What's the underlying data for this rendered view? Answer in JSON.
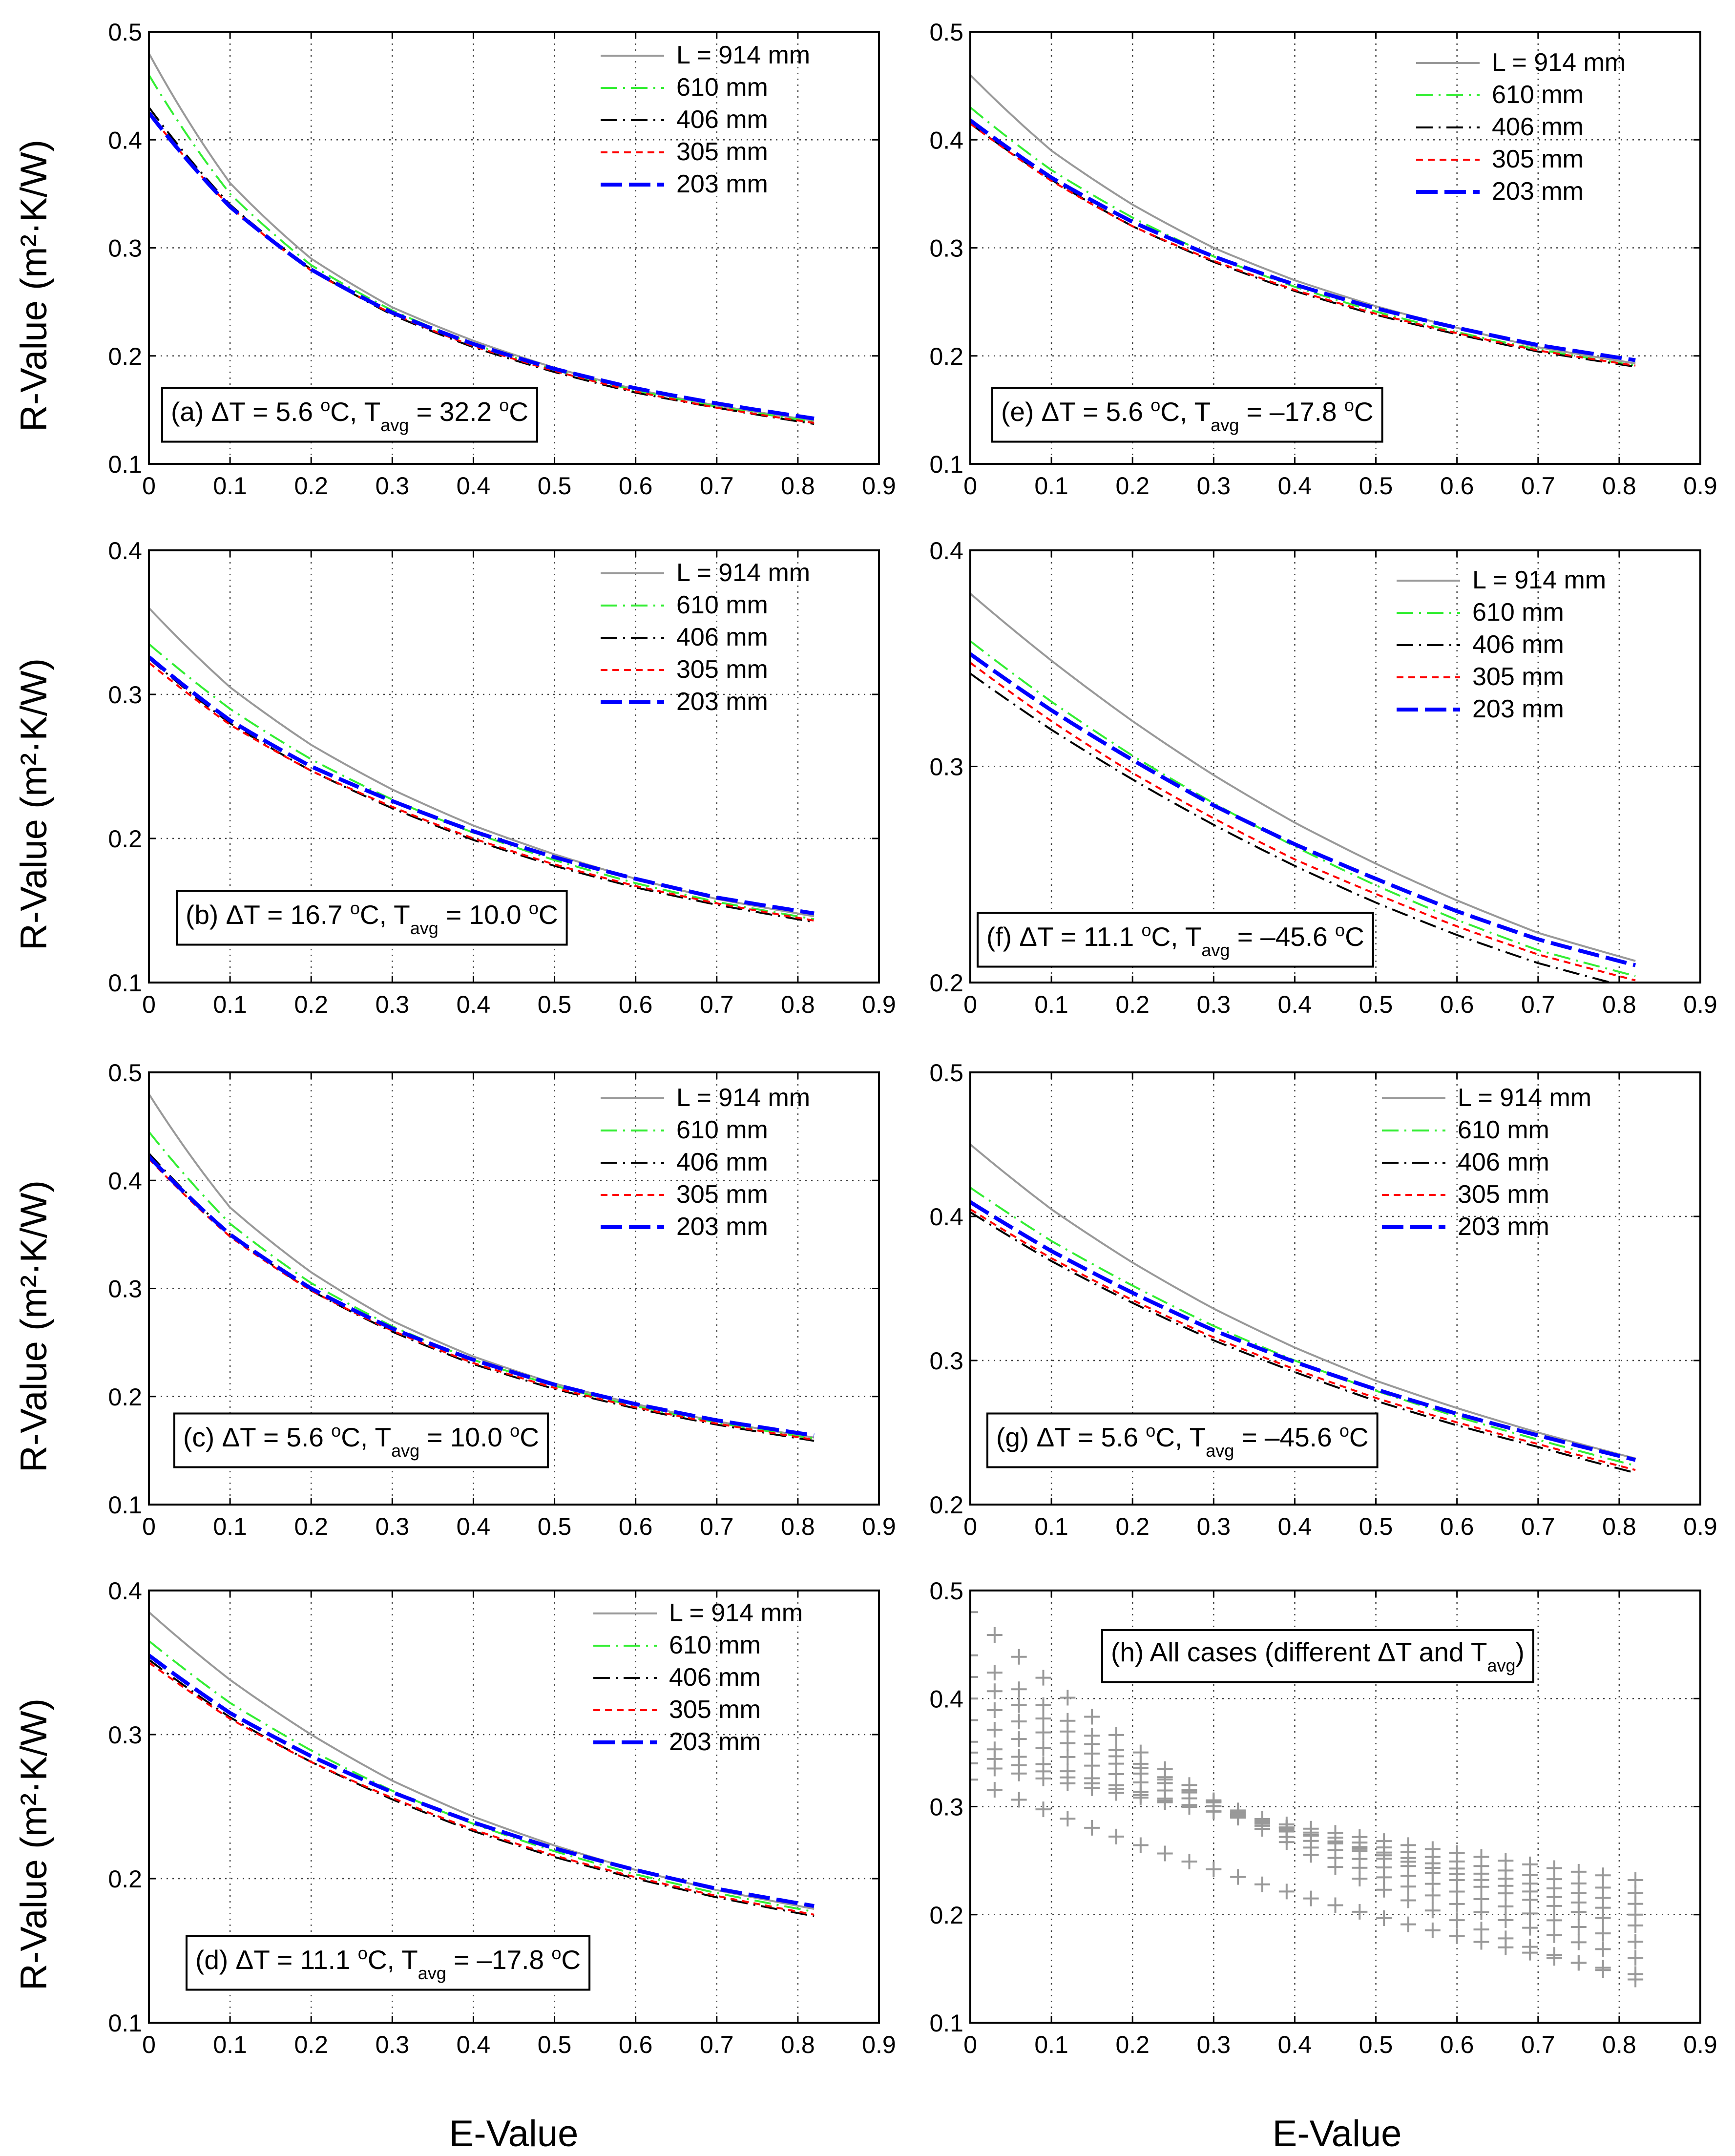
{
  "figure": {
    "xlabel": "E-Value",
    "ylabel": "R-Value (m²·K/W)",
    "legend_labels": [
      "L = 914 mm",
      "610 mm",
      "406 mm",
      "305 mm",
      "203 mm"
    ],
    "series_styles": [
      {
        "name": "L = 914 mm",
        "color": "#999999",
        "dash": "solid",
        "width": 4
      },
      {
        "name": "610 mm",
        "color": "#33ee33",
        "dash": "dashdot",
        "width": 4
      },
      {
        "name": "406 mm",
        "color": "#000000",
        "dash": "dashdot",
        "width": 4
      },
      {
        "name": "305 mm",
        "color": "#ff0000",
        "dash": "short",
        "width": 4
      },
      {
        "name": "203 mm",
        "color": "#0000ff",
        "dash": "long",
        "width": 8
      }
    ]
  },
  "chart_data": [
    {
      "panel": "a",
      "type": "line",
      "annotation": {
        "pre": "(a) ΔT = 5.6 ",
        "v1": "32.2",
        "parts": [
          "(a) ΔT = 5.6 ",
          "o",
          "C, T",
          "avg",
          " = 32.2 ",
          "o",
          "C"
        ]
      },
      "xlim": [
        0,
        0.9
      ],
      "ylim": [
        0.1,
        0.5
      ],
      "xticks": [
        "0",
        "0.1",
        "0.2",
        "0.3",
        "0.4",
        "0.5",
        "0.6",
        "0.7",
        "0.8",
        "0.9"
      ],
      "yticks": [
        "0.1",
        "0.2",
        "0.3",
        "0.4",
        "0.5"
      ],
      "legend": "top-right",
      "x": [
        0.0,
        0.1,
        0.2,
        0.3,
        0.4,
        0.5,
        0.6,
        0.7,
        0.82
      ],
      "series": [
        {
          "name": "L = 914 mm",
          "values": [
            0.48,
            0.36,
            0.29,
            0.245,
            0.214,
            0.189,
            0.169,
            0.154,
            0.14
          ]
        },
        {
          "name": "610 mm",
          "values": [
            0.46,
            0.35,
            0.284,
            0.242,
            0.211,
            0.187,
            0.168,
            0.153,
            0.139
          ]
        },
        {
          "name": "406 mm",
          "values": [
            0.43,
            0.34,
            0.28,
            0.238,
            0.208,
            0.185,
            0.166,
            0.152,
            0.137
          ]
        },
        {
          "name": "305 mm",
          "values": [
            0.425,
            0.338,
            0.279,
            0.239,
            0.209,
            0.186,
            0.167,
            0.152,
            0.138
          ]
        },
        {
          "name": "203 mm",
          "values": [
            0.425,
            0.338,
            0.28,
            0.24,
            0.211,
            0.188,
            0.17,
            0.156,
            0.142
          ]
        }
      ]
    },
    {
      "panel": "b",
      "type": "line",
      "annotation": {
        "parts": [
          "(b) ΔT = 16.7 ",
          "o",
          "C, T",
          "avg",
          " = 10.0 ",
          "o",
          "C"
        ]
      },
      "xlim": [
        0,
        0.9
      ],
      "ylim": [
        0.1,
        0.4
      ],
      "xticks": [
        "0",
        "0.1",
        "0.2",
        "0.3",
        "0.4",
        "0.5",
        "0.6",
        "0.7",
        "0.8",
        "0.9"
      ],
      "yticks": [
        "0.1",
        "0.2",
        "0.3",
        "0.4"
      ],
      "legend": "top-right",
      "x": [
        0.0,
        0.1,
        0.2,
        0.3,
        0.4,
        0.5,
        0.6,
        0.7,
        0.82
      ],
      "series": [
        {
          "name": "L = 914 mm",
          "values": [
            0.36,
            0.305,
            0.265,
            0.234,
            0.209,
            0.189,
            0.172,
            0.158,
            0.146
          ]
        },
        {
          "name": "610 mm",
          "values": [
            0.335,
            0.29,
            0.255,
            0.227,
            0.204,
            0.185,
            0.169,
            0.156,
            0.144
          ]
        },
        {
          "name": "406 mm",
          "values": [
            0.325,
            0.28,
            0.247,
            0.221,
            0.199,
            0.181,
            0.166,
            0.154,
            0.142
          ]
        },
        {
          "name": "305 mm",
          "values": [
            0.322,
            0.279,
            0.247,
            0.222,
            0.2,
            0.182,
            0.167,
            0.155,
            0.143
          ]
        },
        {
          "name": "203 mm",
          "values": [
            0.326,
            0.282,
            0.25,
            0.226,
            0.205,
            0.187,
            0.172,
            0.159,
            0.148
          ]
        }
      ]
    },
    {
      "panel": "c",
      "type": "line",
      "annotation": {
        "parts": [
          "(c) ΔT = 5.6 ",
          "o",
          "C, T",
          "avg",
          " = 10.0 ",
          "o",
          "C"
        ]
      },
      "xlim": [
        0,
        0.9
      ],
      "ylim": [
        0.1,
        0.5
      ],
      "xticks": [
        "0",
        "0.1",
        "0.2",
        "0.3",
        "0.4",
        "0.5",
        "0.6",
        "0.7",
        "0.8",
        "0.9"
      ],
      "yticks": [
        "0.1",
        "0.2",
        "0.3",
        "0.4",
        "0.5"
      ],
      "legend": "top-right",
      "x": [
        0.0,
        0.1,
        0.2,
        0.3,
        0.4,
        0.5,
        0.6,
        0.7,
        0.82
      ],
      "series": [
        {
          "name": "L = 914 mm",
          "values": [
            0.48,
            0.375,
            0.315,
            0.27,
            0.237,
            0.212,
            0.193,
            0.177,
            0.162
          ]
        },
        {
          "name": "610 mm",
          "values": [
            0.445,
            0.36,
            0.305,
            0.265,
            0.234,
            0.21,
            0.191,
            0.176,
            0.161
          ]
        },
        {
          "name": "406 mm",
          "values": [
            0.425,
            0.35,
            0.298,
            0.26,
            0.23,
            0.207,
            0.189,
            0.174,
            0.159
          ]
        },
        {
          "name": "305 mm",
          "values": [
            0.42,
            0.348,
            0.298,
            0.261,
            0.231,
            0.208,
            0.19,
            0.175,
            0.16
          ]
        },
        {
          "name": "203 mm",
          "values": [
            0.422,
            0.35,
            0.3,
            0.263,
            0.234,
            0.211,
            0.193,
            0.178,
            0.164
          ]
        }
      ]
    },
    {
      "panel": "d",
      "type": "line",
      "annotation": {
        "parts": [
          "(d) ΔT = 11.1 ",
          "o",
          "C, T",
          "avg",
          " = –17.8 ",
          "o",
          "C"
        ]
      },
      "xlim": [
        0,
        0.9
      ],
      "ylim": [
        0.1,
        0.4
      ],
      "xticks": [
        "0",
        "0.1",
        "0.2",
        "0.3",
        "0.4",
        "0.5",
        "0.6",
        "0.7",
        "0.8",
        "0.9"
      ],
      "yticks": [
        "0.1",
        "0.2",
        "0.3",
        "0.4"
      ],
      "legend": "top-right",
      "x": [
        0.0,
        0.1,
        0.2,
        0.3,
        0.4,
        0.5,
        0.6,
        0.7,
        0.82
      ],
      "series": [
        {
          "name": "L = 914 mm",
          "values": [
            0.385,
            0.338,
            0.3,
            0.268,
            0.243,
            0.223,
            0.206,
            0.192,
            0.179
          ]
        },
        {
          "name": "610 mm",
          "values": [
            0.365,
            0.322,
            0.289,
            0.261,
            0.238,
            0.219,
            0.203,
            0.19,
            0.177
          ]
        },
        {
          "name": "406 mm",
          "values": [
            0.352,
            0.312,
            0.281,
            0.255,
            0.233,
            0.215,
            0.2,
            0.187,
            0.174
          ]
        },
        {
          "name": "305 mm",
          "values": [
            0.35,
            0.311,
            0.281,
            0.256,
            0.234,
            0.216,
            0.201,
            0.188,
            0.175
          ]
        },
        {
          "name": "203 mm",
          "values": [
            0.355,
            0.315,
            0.285,
            0.26,
            0.239,
            0.221,
            0.206,
            0.193,
            0.181
          ]
        }
      ]
    },
    {
      "panel": "e",
      "type": "line",
      "annotation": {
        "parts": [
          "(e) ΔT = 5.6 ",
          "o",
          "C, T",
          "avg",
          " = –17.8 ",
          "o",
          "C"
        ]
      },
      "xlim": [
        0,
        0.9
      ],
      "ylim": [
        0.1,
        0.5
      ],
      "xticks": [
        "0",
        "0.1",
        "0.2",
        "0.3",
        "0.4",
        "0.5",
        "0.6",
        "0.7",
        "0.8",
        "0.9"
      ],
      "yticks": [
        "0.1",
        "0.2",
        "0.3",
        "0.4",
        "0.5"
      ],
      "legend": "top-right",
      "x": [
        0.0,
        0.1,
        0.2,
        0.3,
        0.4,
        0.5,
        0.6,
        0.7,
        0.82
      ],
      "series": [
        {
          "name": "L = 914 mm",
          "values": [
            0.46,
            0.39,
            0.34,
            0.3,
            0.27,
            0.246,
            0.226,
            0.208,
            0.193
          ]
        },
        {
          "name": "610 mm",
          "values": [
            0.43,
            0.372,
            0.328,
            0.292,
            0.264,
            0.241,
            0.222,
            0.206,
            0.191
          ]
        },
        {
          "name": "406 mm",
          "values": [
            0.415,
            0.363,
            0.32,
            0.287,
            0.26,
            0.238,
            0.22,
            0.204,
            0.19
          ]
        },
        {
          "name": "305 mm",
          "values": [
            0.415,
            0.362,
            0.32,
            0.288,
            0.261,
            0.239,
            0.221,
            0.205,
            0.191
          ]
        },
        {
          "name": "203 mm",
          "values": [
            0.418,
            0.365,
            0.324,
            0.292,
            0.266,
            0.244,
            0.226,
            0.21,
            0.196
          ]
        }
      ]
    },
    {
      "panel": "f",
      "type": "line",
      "annotation": {
        "parts": [
          "(f) ΔT = 11.1 ",
          "o",
          "C, T",
          "avg",
          " = –45.6 ",
          "o",
          "C"
        ]
      },
      "xlim": [
        0,
        0.9
      ],
      "ylim": [
        0.2,
        0.4
      ],
      "xticks": [
        "0",
        "0.1",
        "0.2",
        "0.3",
        "0.4",
        "0.5",
        "0.6",
        "0.7",
        "0.8",
        "0.9"
      ],
      "yticks": [
        "0.2",
        "0.3",
        "0.4"
      ],
      "legend": "top-right",
      "x": [
        0.0,
        0.1,
        0.2,
        0.3,
        0.4,
        0.5,
        0.6,
        0.7,
        0.82
      ],
      "series": [
        {
          "name": "L = 914 mm",
          "values": [
            0.38,
            0.349,
            0.321,
            0.296,
            0.274,
            0.255,
            0.238,
            0.223,
            0.21
          ]
        },
        {
          "name": "610 mm",
          "values": [
            0.358,
            0.33,
            0.305,
            0.283,
            0.263,
            0.245,
            0.229,
            0.215,
            0.203
          ]
        },
        {
          "name": "406 mm",
          "values": [
            0.343,
            0.317,
            0.294,
            0.273,
            0.254,
            0.237,
            0.222,
            0.209,
            0.197
          ]
        },
        {
          "name": "305 mm",
          "values": [
            0.348,
            0.321,
            0.297,
            0.276,
            0.257,
            0.241,
            0.226,
            0.213,
            0.201
          ]
        },
        {
          "name": "203 mm",
          "values": [
            0.352,
            0.326,
            0.303,
            0.282,
            0.264,
            0.248,
            0.233,
            0.22,
            0.208
          ]
        }
      ]
    },
    {
      "panel": "g",
      "type": "line",
      "annotation": {
        "parts": [
          "(g) ΔT = 5.6 ",
          "o",
          "C, T",
          "avg",
          " = –45.6 ",
          "o",
          "C"
        ]
      },
      "xlim": [
        0,
        0.9
      ],
      "ylim": [
        0.2,
        0.5
      ],
      "xticks": [
        "0",
        "0.1",
        "0.2",
        "0.3",
        "0.4",
        "0.5",
        "0.6",
        "0.7",
        "0.8",
        "0.9"
      ],
      "yticks": [
        "0.2",
        "0.3",
        "0.4",
        "0.5"
      ],
      "legend": "top-right",
      "x": [
        0.0,
        0.1,
        0.2,
        0.3,
        0.4,
        0.5,
        0.6,
        0.7,
        0.82
      ],
      "series": [
        {
          "name": "L = 914 mm",
          "values": [
            0.45,
            0.405,
            0.368,
            0.336,
            0.309,
            0.286,
            0.267,
            0.25,
            0.232
          ]
        },
        {
          "name": "610 mm",
          "values": [
            0.42,
            0.383,
            0.352,
            0.324,
            0.3,
            0.279,
            0.261,
            0.245,
            0.227
          ]
        },
        {
          "name": "406 mm",
          "values": [
            0.403,
            0.369,
            0.34,
            0.314,
            0.292,
            0.272,
            0.255,
            0.24,
            0.222
          ]
        },
        {
          "name": "305 mm",
          "values": [
            0.405,
            0.371,
            0.342,
            0.316,
            0.294,
            0.274,
            0.257,
            0.242,
            0.224
          ]
        },
        {
          "name": "203 mm",
          "values": [
            0.41,
            0.376,
            0.347,
            0.321,
            0.299,
            0.28,
            0.263,
            0.248,
            0.231
          ]
        }
      ]
    },
    {
      "panel": "h",
      "type": "scatter",
      "annotation": {
        "parts": [
          "(h) All cases (different ΔT and T",
          "avg",
          ")"
        ]
      },
      "marker": "+",
      "marker_color": "#999999",
      "xlim": [
        0,
        0.9
      ],
      "ylim": [
        0.1,
        0.5
      ],
      "xticks": [
        "0",
        "0.1",
        "0.2",
        "0.3",
        "0.4",
        "0.5",
        "0.6",
        "0.7",
        "0.8",
        "0.9"
      ],
      "yticks": [
        "0.1",
        "0.2",
        "0.3",
        "0.4",
        "0.5"
      ],
      "x": [
        0.0,
        0.03,
        0.06,
        0.09,
        0.12,
        0.15,
        0.18,
        0.21,
        0.24,
        0.27,
        0.3,
        0.33,
        0.36,
        0.39,
        0.42,
        0.45,
        0.48,
        0.51,
        0.54,
        0.57,
        0.6,
        0.63,
        0.66,
        0.69,
        0.72,
        0.75,
        0.78,
        0.82
      ],
      "series": [
        {
          "name": "",
          "start": 0.48,
          "end": 0.14
        },
        {
          "name": "",
          "start": 0.44,
          "end": 0.16
        },
        {
          "name": "",
          "start": 0.42,
          "end": 0.175
        },
        {
          "name": "",
          "start": 0.4,
          "end": 0.19
        },
        {
          "name": "",
          "start": 0.38,
          "end": 0.2
        },
        {
          "name": "",
          "start": 0.36,
          "end": 0.21
        },
        {
          "name": "",
          "start": 0.35,
          "end": 0.22
        },
        {
          "name": "",
          "start": 0.325,
          "end": 0.145
        },
        {
          "name": "",
          "start": 0.34,
          "end": 0.232
        }
      ]
    }
  ]
}
